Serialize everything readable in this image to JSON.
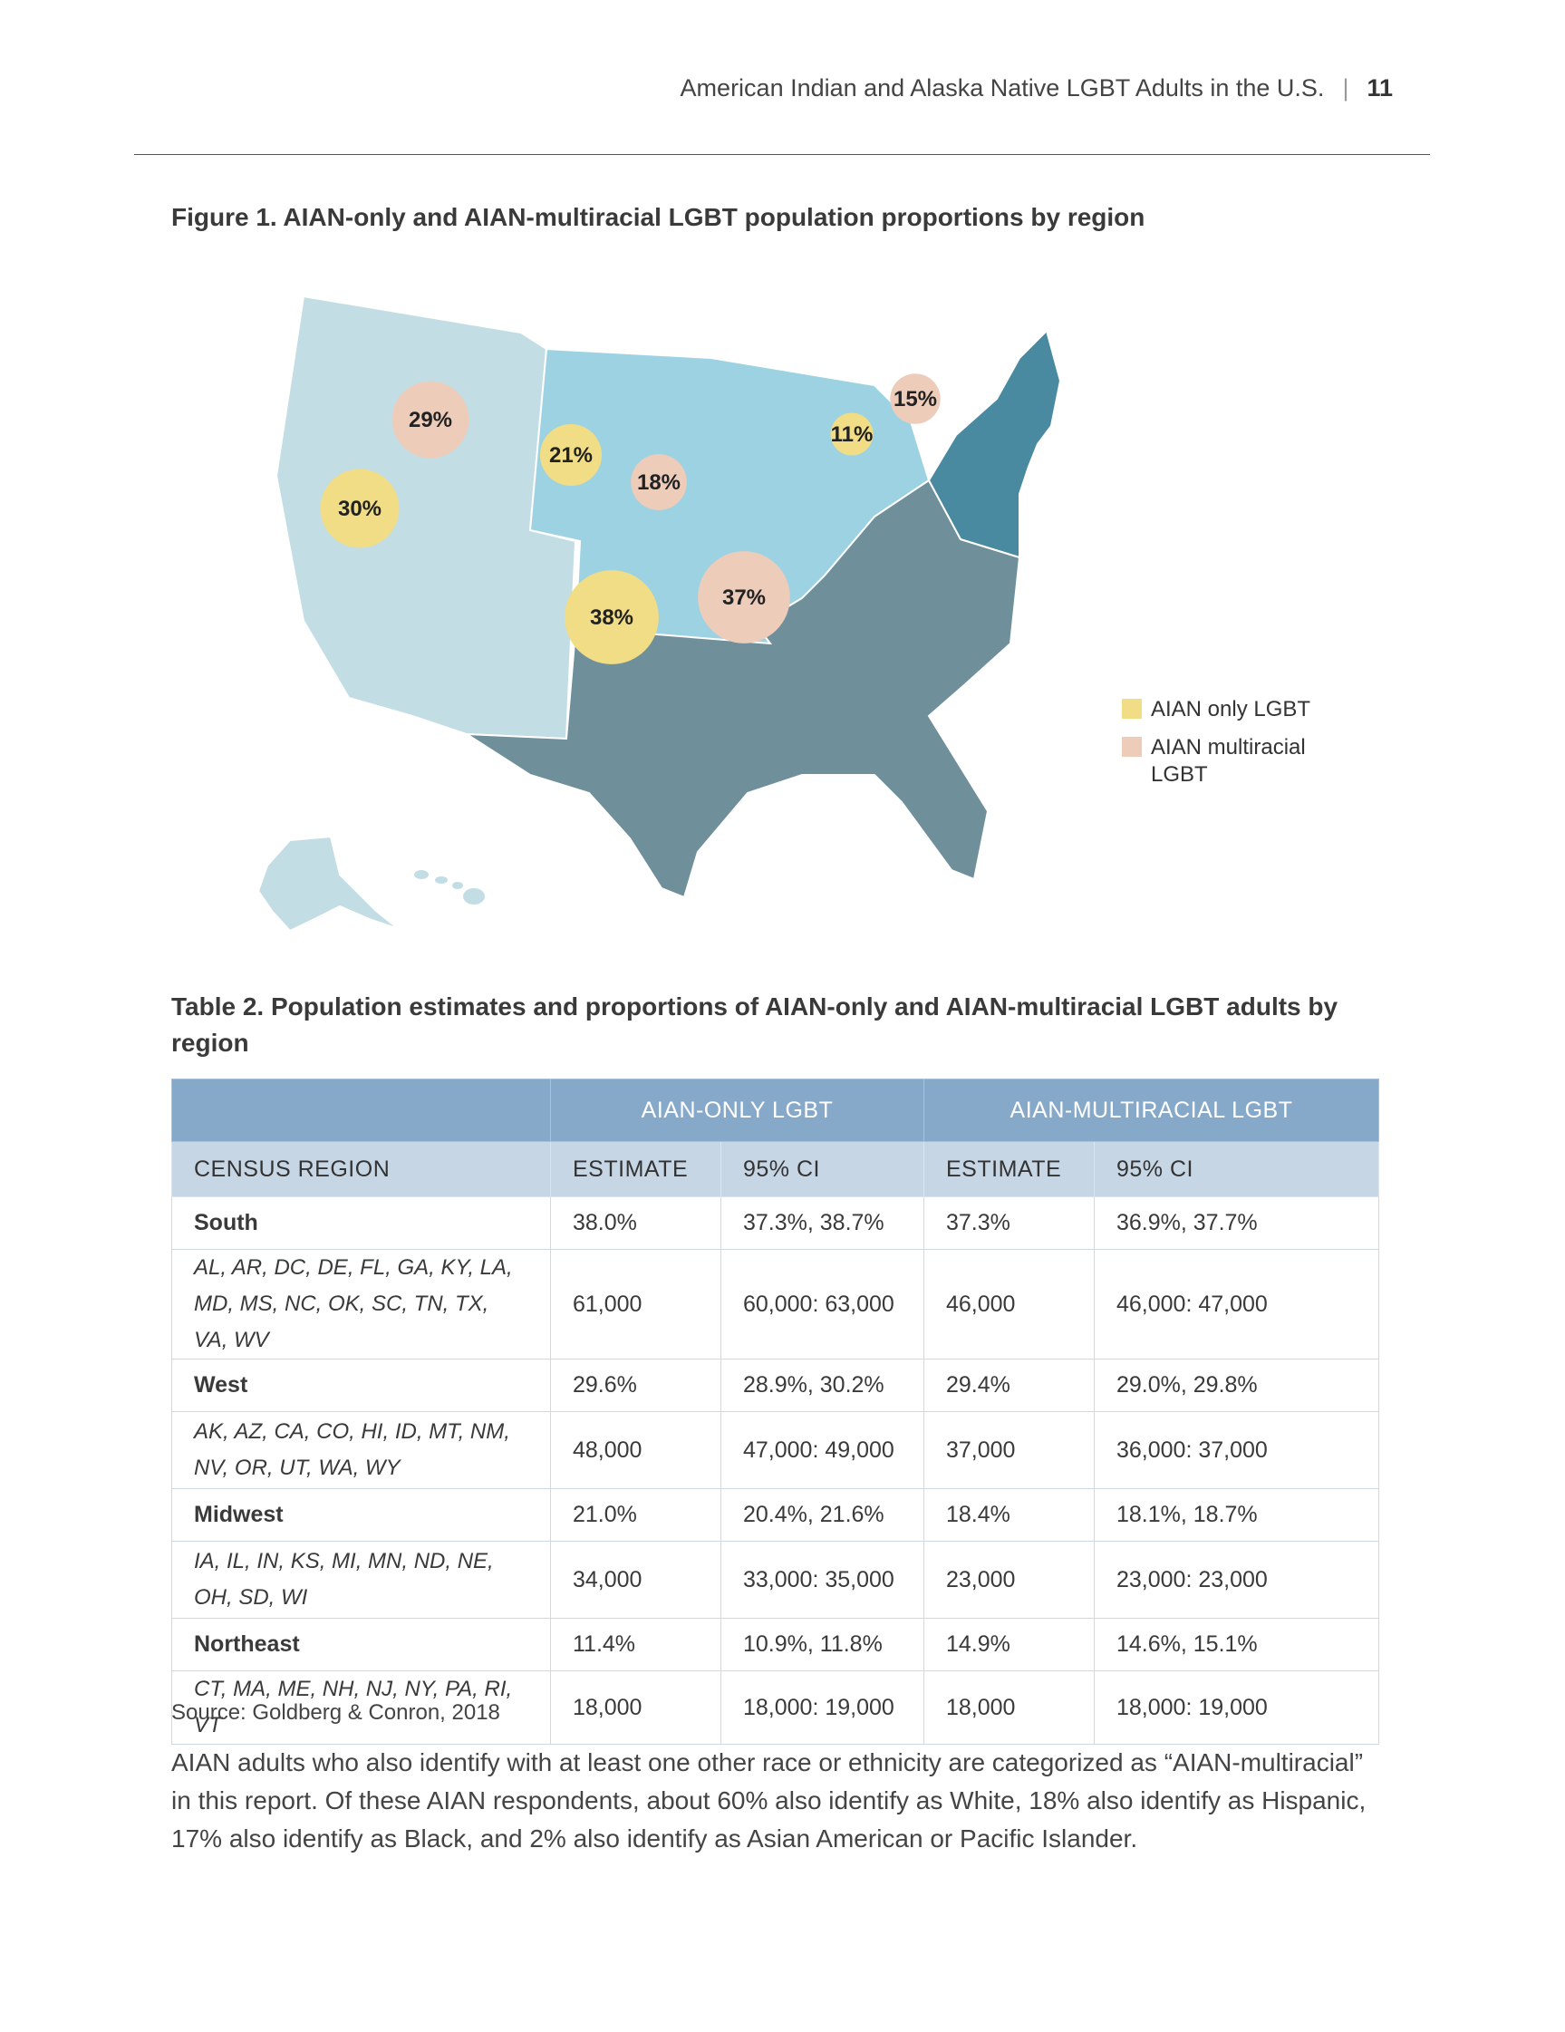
{
  "header": {
    "running_title": "American Indian and Alaska Native LGBT Adults in the U.S.",
    "separator": "|",
    "page_number": "11"
  },
  "figure": {
    "title": "Figure 1. AIAN-only and AIAN-multiracial LGBT population proportions by region",
    "colors": {
      "west_region": "#c3dde5",
      "midwest_region": "#9dd2e3",
      "south_region": "#6f8f9a",
      "northeast_region": "#4a8aa0",
      "aian_only": "#f0dd85",
      "aian_multiracial": "#edccba"
    },
    "regions": [
      {
        "name": "West",
        "aian_only": "30%",
        "aian_multiracial": "29%"
      },
      {
        "name": "Midwest",
        "aian_only": "21%",
        "aian_multiracial": "18%"
      },
      {
        "name": "South",
        "aian_only": "38%",
        "aian_multiracial": "37%"
      },
      {
        "name": "Northeast",
        "aian_only": "11%",
        "aian_multiracial": "15%"
      }
    ],
    "legend": {
      "aian_only": "AIAN only LGBT",
      "aian_multiracial": "AIAN multiracial LGBT"
    }
  },
  "table": {
    "title": "Table 2. Population estimates and proportions of AIAN-only and AIAN-multiracial LGBT adults by region",
    "group_headers": [
      "AIAN-ONLY LGBT",
      "AIAN-MULTIRACIAL LGBT"
    ],
    "column_headers": [
      "CENSUS REGION",
      "ESTIMATE",
      "95% CI",
      "ESTIMATE",
      "95% CI"
    ],
    "rows": [
      {
        "label": "South",
        "cells": [
          "38.0%",
          "37.3%, 38.7%",
          "37.3%",
          "36.9%, 37.7%"
        ]
      },
      {
        "label": "AL, AR, DC, DE, FL, GA, KY, LA, MD, MS, NC, OK, SC, TN, TX, VA, WV",
        "cells": [
          "61,000",
          "60,000: 63,000",
          "46,000",
          "46,000: 47,000"
        ]
      },
      {
        "label": "West",
        "cells": [
          "29.6%",
          "28.9%, 30.2%",
          "29.4%",
          "29.0%, 29.8%"
        ]
      },
      {
        "label": "AK, AZ, CA, CO, HI, ID, MT, NM, NV, OR, UT, WA, WY",
        "cells": [
          "48,000",
          "47,000: 49,000",
          "37,000",
          "36,000: 37,000"
        ]
      },
      {
        "label": "Midwest",
        "cells": [
          "21.0%",
          "20.4%, 21.6%",
          "18.4%",
          "18.1%, 18.7%"
        ]
      },
      {
        "label": "IA, IL, IN, KS, MI, MN, ND, NE, OH, SD, WI",
        "cells": [
          "34,000",
          "33,000: 35,000",
          "23,000",
          "23,000: 23,000"
        ]
      },
      {
        "label": "Northeast",
        "cells": [
          "11.4%",
          "10.9%, 11.8%",
          "14.9%",
          "14.6%, 15.1%"
        ]
      },
      {
        "label": "CT, MA, ME, NH, NJ, NY, PA, RI, VT",
        "cells": [
          "18,000",
          "18,000: 19,000",
          "18,000",
          "18,000: 19,000"
        ]
      }
    ],
    "source": "Source: Goldberg & Conron, 2018"
  },
  "paragraph": "AIAN adults who also identify with at least one other race or ethnicity are categorized as “AIAN-multiracial” in this report. Of these AIAN respondents, about 60% also identify as White, 18% also identify as Hispanic, 17% also identify as Black, and 2% also identify as Asian American or Pacific Islander."
}
